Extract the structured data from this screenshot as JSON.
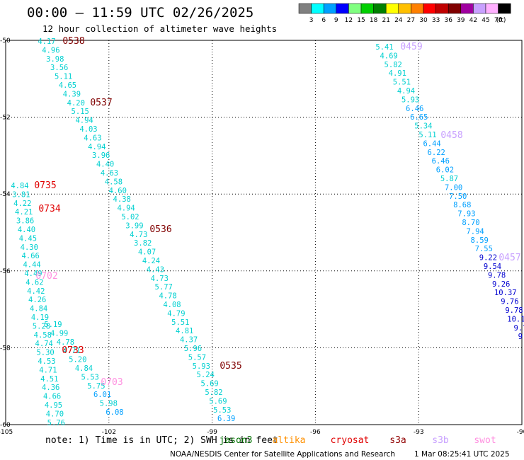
{
  "title": "00:00 – 11:59 UTC 02/26/2025",
  "subtitle": "12 hour collection of altimeter wave heights",
  "colorbar": {
    "colors": [
      "#808080",
      "#00ffff",
      "#00a0ff",
      "#0000ff",
      "#80ff80",
      "#00d000",
      "#008000",
      "#ffff00",
      "#ffc000",
      "#ff8000",
      "#ff0000",
      "#c00000",
      "#800000",
      "#a000a0",
      "#c8a0ff",
      "#ffb0ff",
      "#000000"
    ],
    "labels": [
      "3",
      "6",
      "9",
      "12",
      "15",
      "18",
      "21",
      "24",
      "27",
      "30",
      "33",
      "36",
      "39",
      "42",
      "45",
      "70",
      "(ft)"
    ]
  },
  "note": "note: 1) Time is in UTC; 2) SWH is in feet",
  "satellites": [
    {
      "name": "jason3",
      "color": "#007000"
    },
    {
      "name": "altika",
      "color": "#ff9000"
    },
    {
      "name": "cryosat",
      "color": "#e00000"
    },
    {
      "name": "s3a",
      "color": "#900000"
    },
    {
      "name": "s3b",
      "color": "#c8a0ff"
    },
    {
      "name": "swot",
      "color": "#ff90e0"
    }
  ],
  "credit": "NOAA/NESDIS Center for Satellite Applications and Research",
  "timestamp": "1 Mar 08:25:41 UTC 2025",
  "chart_data": {
    "type": "scatter",
    "title": "00:00 – 11:59 UTC 02/26/2025",
    "subtitle": "12 hour collection of altimeter wave heights",
    "xlim": [
      -105,
      -90
    ],
    "ylim": [
      -60,
      -50
    ],
    "x_ticks": [
      -105,
      -102,
      -99,
      -96,
      -93,
      -90
    ],
    "y_ticks": [
      -50,
      -52,
      -54,
      -56,
      -58,
      -60
    ],
    "x_tick_labels": [
      "-105",
      "-102",
      "-99",
      "-96",
      "-93",
      "-90"
    ],
    "y_tick_labels": [
      "-50",
      "-52",
      "-54",
      "-56",
      "-58",
      "-60"
    ],
    "grid": true,
    "series": [
      {
        "name": "s3a",
        "color": "#00ffff",
        "points": [
          [
            -104.2,
            -50.1,
            4.17
          ],
          [
            -104.1,
            -50.22,
            4.96
          ],
          [
            -104.0,
            -50.34,
            3.98
          ],
          [
            -103.9,
            -50.46,
            3.56
          ],
          [
            -103.8,
            -50.58,
            5.11
          ],
          [
            -103.7,
            -50.7,
            4.65
          ],
          [
            -103.6,
            -50.82,
            4.39
          ],
          [
            -103.5,
            -50.94,
            4.2
          ],
          [
            -103.4,
            -51.06,
            5.15
          ],
          [
            -103.3,
            -51.18,
            4.94
          ],
          [
            -103.2,
            -51.3,
            4.03
          ],
          [
            -103.1,
            -51.42,
            4.63
          ],
          [
            -103.0,
            -51.54,
            4.94
          ],
          [
            -102.9,
            -51.66,
            3.96
          ],
          [
            -102.8,
            -51.78,
            4.4
          ],
          [
            -102.7,
            -51.9,
            4.63
          ],
          [
            -102.6,
            -52.02,
            4.58
          ],
          [
            -102.5,
            -52.14,
            4.6
          ],
          [
            -102.4,
            -52.26,
            4.38
          ],
          [
            -102.3,
            -52.38,
            4.94
          ],
          [
            -102.2,
            -52.5,
            5.02
          ],
          [
            -102.1,
            -52.62,
            3.99
          ],
          [
            -102.0,
            -52.74,
            4.73
          ],
          [
            -101.9,
            -52.86,
            3.82
          ],
          [
            -101.8,
            -52.98,
            4.07
          ],
          [
            -101.7,
            -53.1,
            4.24
          ],
          [
            -101.6,
            -53.22,
            4.43
          ],
          [
            -101.5,
            -53.34,
            4.73
          ],
          [
            -101.4,
            -53.46,
            5.77
          ],
          [
            -101.3,
            -53.58,
            4.78
          ],
          [
            -101.2,
            -53.7,
            4.08
          ],
          [
            -101.1,
            -53.82,
            4.79
          ],
          [
            -101.0,
            -53.94,
            5.51
          ],
          [
            -100.9,
            -54.06,
            4.81
          ],
          [
            -100.8,
            -54.18,
            4.37
          ],
          [
            -100.7,
            -54.3,
            5.96
          ],
          [
            -100.6,
            -54.42,
            5.57
          ],
          [
            -100.5,
            -54.54,
            5.93
          ],
          [
            -100.4,
            -54.66,
            5.24
          ],
          [
            -100.3,
            -54.78,
            5.69
          ],
          [
            -100.2,
            -54.9,
            5.82
          ],
          [
            -100.1,
            -55.02,
            5.69
          ],
          [
            -100.0,
            -55.14,
            5.53
          ],
          [
            -99.9,
            -55.26,
            6.39
          ]
        ]
      },
      {
        "name": "s3a-2",
        "color": "#00ffff",
        "points": [
          [
            -104.6,
            -51.8,
            4.84
          ],
          [
            -104.5,
            -51.92,
            3.81
          ],
          [
            -104.4,
            -52.04,
            4.22
          ],
          [
            -104.4,
            -52.16,
            4.21
          ],
          [
            -104.3,
            -52.28,
            3.86
          ],
          [
            -104.2,
            -52.4,
            4.4
          ],
          [
            -104.1,
            -52.52,
            4.45
          ],
          [
            -104.0,
            -52.64,
            4.3
          ],
          [
            -104.0,
            -52.76,
            4.66
          ],
          [
            -103.9,
            -52.88,
            4.44
          ],
          [
            -103.8,
            -53.0,
            4.49
          ],
          [
            -103.8,
            -53.12,
            4.62
          ],
          [
            -103.7,
            -53.24,
            4.42
          ],
          [
            -103.6,
            -53.36,
            4.26
          ],
          [
            -103.6,
            -53.48,
            4.84
          ],
          [
            -103.5,
            -53.6,
            4.19
          ],
          [
            -103.5,
            -53.72,
            5.28
          ],
          [
            -103.4,
            -53.84,
            4.58
          ],
          [
            -103.3,
            -53.96,
            4.74
          ],
          [
            -103.3,
            -54.08,
            5.3
          ],
          [
            -103.3,
            -54.2,
            4.53
          ],
          [
            -103.2,
            -54.32,
            4.71
          ],
          [
            -103.2,
            -54.44,
            4.51
          ],
          [
            -103.2,
            -54.56,
            4.36
          ],
          [
            -103.1,
            -54.68,
            4.66
          ],
          [
            -103.1,
            -54.8,
            4.95
          ],
          [
            -103.1,
            -54.92,
            4.7
          ],
          [
            -103.1,
            -55.04,
            5.76
          ]
        ]
      },
      {
        "name": "s3a-3",
        "color": "#00ffff",
        "points": [
          [
            -102.9,
            -53.72,
            5.19
          ],
          [
            -102.8,
            -53.84,
            4.99
          ],
          [
            -102.7,
            -53.96,
            4.78
          ],
          [
            -102.7,
            -54.08,
            4.71
          ],
          [
            -102.6,
            -54.2,
            5.2
          ],
          [
            -102.5,
            -54.32,
            4.84
          ],
          [
            -102.4,
            -54.44,
            5.53
          ],
          [
            -102.3,
            -54.56,
            5.75
          ],
          [
            -102.2,
            -54.68,
            6.01
          ],
          [
            -102.1,
            -54.8,
            5.98
          ],
          [
            -102.0,
            -54.92,
            6.08
          ]
        ]
      },
      {
        "name": "s3b",
        "color": "#00ffff",
        "points": [
          [
            -93.2,
            -50.1,
            5.41
          ],
          [
            -93.1,
            -50.22,
            4.69
          ],
          [
            -93.0,
            -50.34,
            5.82
          ],
          [
            -92.9,
            -50.46,
            4.91
          ],
          [
            -92.8,
            -50.58,
            5.51
          ],
          [
            -92.7,
            -50.7,
            4.94
          ],
          [
            -92.6,
            -50.82,
            5.93
          ],
          [
            -92.5,
            -50.94,
            6.46
          ],
          [
            -92.4,
            -51.06,
            6.65
          ],
          [
            -92.3,
            -51.18,
            5.34
          ],
          [
            -92.2,
            -51.3,
            5.11
          ],
          [
            -92.1,
            -51.42,
            6.44
          ],
          [
            -92.0,
            -51.54,
            6.22
          ],
          [
            -91.9,
            -51.66,
            6.46
          ],
          [
            -91.8,
            -51.78,
            6.02
          ],
          [
            -91.7,
            -51.9,
            5.87
          ],
          [
            -91.6,
            -52.02,
            7.0
          ],
          [
            -91.5,
            -52.14,
            7.5
          ],
          [
            -91.4,
            -52.26,
            8.68
          ],
          [
            -91.3,
            -52.38,
            7.93
          ],
          [
            -91.2,
            -52.5,
            8.7
          ],
          [
            -91.1,
            -52.62,
            7.94
          ],
          [
            -91.0,
            -52.74,
            8.59
          ],
          [
            -90.9,
            -52.86,
            7.55
          ],
          [
            -90.8,
            -52.98,
            9.22
          ],
          [
            -90.7,
            -53.1,
            9.54
          ],
          [
            -90.6,
            -53.22,
            9.78
          ],
          [
            -90.5,
            -53.34,
            9.26
          ],
          [
            -90.4,
            -53.46,
            10.37
          ],
          [
            -90.3,
            -53.58,
            9.76
          ],
          [
            -90.2,
            -53.7,
            9.78
          ],
          [
            -90.1,
            -53.82,
            10.13
          ],
          [
            -90.0,
            -53.94,
            9.75
          ],
          [
            -90.0,
            -54.06,
            9.38
          ],
          [
            -90.0,
            -54.18,
            9.3
          ]
        ]
      }
    ],
    "pass_labels": [
      {
        "text": "0538",
        "color": "#800000"
      },
      {
        "text": "0537",
        "color": "#800000"
      },
      {
        "text": "0735",
        "color": "#e00000"
      },
      {
        "text": "0734",
        "color": "#e00000"
      },
      {
        "text": "0536",
        "color": "#800000"
      },
      {
        "text": "0702",
        "color": "#ff90e0"
      },
      {
        "text": "0733",
        "color": "#e00000"
      },
      {
        "text": "0703",
        "color": "#ff90e0"
      },
      {
        "text": "0535",
        "color": "#800000"
      },
      {
        "text": "0459",
        "color": "#c8a0ff"
      },
      {
        "text": "0458",
        "color": "#c8a0ff"
      },
      {
        "text": "0457",
        "color": "#c8a0ff"
      }
    ]
  }
}
